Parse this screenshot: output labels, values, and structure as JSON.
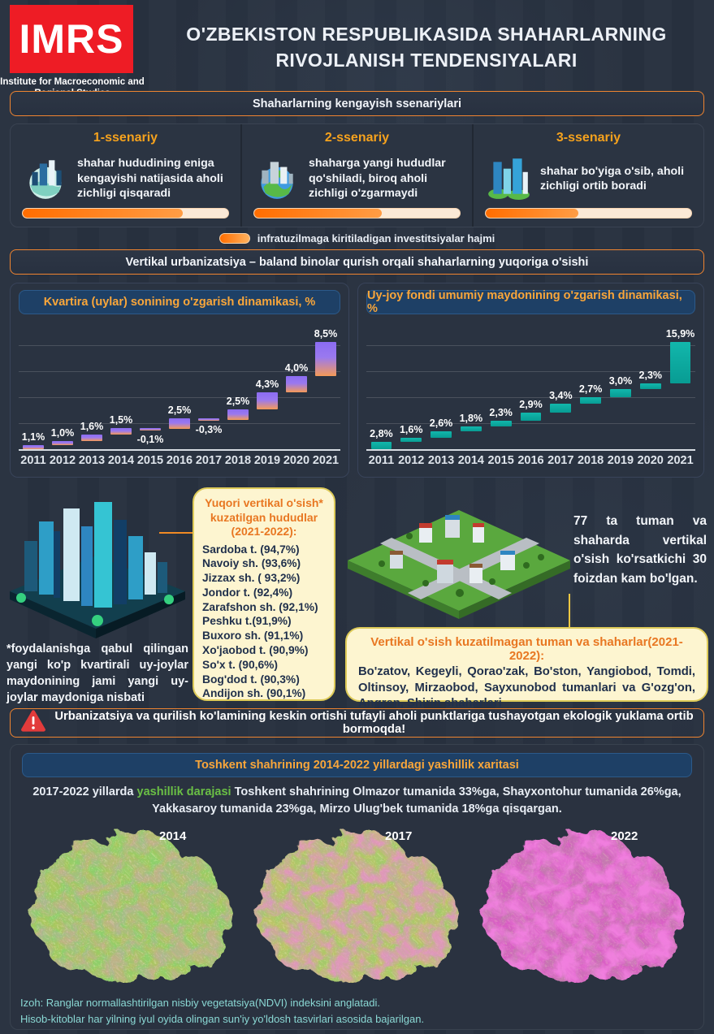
{
  "header": {
    "logo_text": "IMRS",
    "logo_subtitle": "Institute for Macroeconomic and Regional Studies",
    "title_line1": "O'ZBEKISTON RESPUBLIKASIDA SHAHARLARNING",
    "title_line2": "RIVOJLANISH TENDENSIYALARI"
  },
  "banners": {
    "scenarios": "Shaharlarning kengayish ssenariylari",
    "vertical": "Vertikal urbanizatsiya – baland binolar qurish orqali shaharlarning yuqoriga o'sishi",
    "warning": "Urbanizatsiya va qurilish ko'lamining keskin ortishi tufayli aholi punktlariga tushayotgan ekologik yuklama ortib bormoqda!"
  },
  "scenarios": [
    {
      "title": "1-ssenariy",
      "text": "shahar hududining eniga kengayishi natijasida aholi zichligi qisqaradi",
      "progress": 78
    },
    {
      "title": "2-ssenariy",
      "text": "shaharga yangi hududlar qo'shiladi, biroq aholi zichligi o'zgarmaydi",
      "progress": 62
    },
    {
      "title": "3-ssenariy",
      "text": "shahar bo'yiga o'sib, aholi zichligi ortib boradi",
      "progress": 45
    }
  ],
  "legend": {
    "label": "infratuzilmaga kiritiladigan investitsiyalar hajmi"
  },
  "chart_data": [
    {
      "type": "bar",
      "variant": "waterfall",
      "title": "Kvartira (uylar) sonining o'zgarish dinamikasi, %",
      "categories": [
        "2011",
        "2012",
        "2013",
        "2014",
        "2015",
        "2016",
        "2017",
        "2018",
        "2019",
        "2020",
        "2021"
      ],
      "values": [
        1.1,
        1.0,
        1.6,
        1.5,
        -0.1,
        2.5,
        -0.3,
        2.5,
        4.3,
        4.0,
        8.5
      ],
      "labels": [
        "1,1%",
        "1,0%",
        "1,6%",
        "1,5%",
        "-0,1%",
        "2,5%",
        "-0,3%",
        "2,5%",
        "4,3%",
        "4,0%",
        "8,5%"
      ],
      "xlabel": "",
      "ylabel": "",
      "grid": true,
      "legend": "none",
      "bar_colors": [
        "#8b6cf2",
        "#f59a57"
      ]
    },
    {
      "type": "bar",
      "variant": "waterfall",
      "title": "Uy-joy fondi umumiy maydonining o'zgarish dinamikasi, %",
      "categories": [
        "2011",
        "2012",
        "2013",
        "2014",
        "2015",
        "2016",
        "2017",
        "2018",
        "2019",
        "2020",
        "2021"
      ],
      "values": [
        2.8,
        1.6,
        2.6,
        1.8,
        2.3,
        2.9,
        3.4,
        2.7,
        3.0,
        2.3,
        15.9
      ],
      "labels": [
        "2,8%",
        "1,6%",
        "2,6%",
        "1,8%",
        "2,3%",
        "2,9%",
        "3,4%",
        "2,7%",
        "3,0%",
        "2,3%",
        "15,9%"
      ],
      "xlabel": "",
      "ylabel": "",
      "grid": true,
      "legend": "none",
      "bar_colors": [
        "#0fb3a8"
      ]
    }
  ],
  "high_growth_box": {
    "title": "Yuqori vertikal o'sish* kuzatilgan hududlar (2021-2022):",
    "items": [
      "Sardoba t. (94,7%)",
      "Navoiy sh. (93,6%)",
      "Jizzax sh. ( 93,2%)",
      "Jondor t. (92,4%)",
      "Zarafshon sh. (92,1%)",
      "Peshku t.(91,9%)",
      "Buxoro sh. (91,1%)",
      "Xo'jaobod t. (90,9%)",
      "So'x t. (90,6%)",
      "Bog'dod t. (90,3%)",
      "Andijon sh. (90,1%)"
    ]
  },
  "note_left": "*foydalanishga qabul qilingan yangi ko'p kvartirali uy-joylar maydonining jami yangi uy-joylar maydoniga nisbati",
  "stat_right": "77 ta tuman va shaharda vertikal o'sish ko'rsatkichi 30 foizdan kam bo'lgan.",
  "no_growth_box": {
    "title": "Vertikal o'sish kuzatilmagan tuman va shaharlar(2021-2022):",
    "text": "Bo'zatov, Kegeyli, Qorao'zak, Bo'ston, Yangiobod, Tomdi, Oltinsoy, Mirzaobod, Sayxunobod tumanlari va G'ozg'on, Angren, Shirin shaharlari"
  },
  "greenery": {
    "title": "Toshkent shahrining 2014-2022 yillardagi yashillik xaritasi",
    "subtitle": {
      "before": "2017-2022 yillarda ",
      "highlight": "yashillik darajasi",
      "after": " Toshkent shahrining Olmazor tumanida 33%ga, Shayxontohur tumanida 26%ga, Yakkasaroy tumanida 23%ga, Mirzo Ulug'bek tumanida 18%ga qisqargan."
    },
    "maps": [
      {
        "year": "2014",
        "dominant": "green"
      },
      {
        "year": "2017",
        "dominant": "mixed"
      },
      {
        "year": "2022",
        "dominant": "magenta"
      }
    ],
    "note_line1": "Izoh: Ranglar normallashtirilgan nisbiy vegetatsiya(NDVI) indeksini anglatadi.",
    "note_line2": "Hisob-kitoblar har yilning iyul oyida olingan sun'iy yo'ldosh tasvirlari asosida bajarilgan."
  },
  "colors": {
    "accent_orange": "#ef8430",
    "heading_orange": "#f6a21d",
    "bar_purple": "#8b6cf2",
    "bar_orange_bottom": "#f59a57",
    "bar_teal": "#0fb3a8",
    "yellow_box_bg": "#fdf5d0",
    "warning_red": "#e23b3b",
    "note_teal": "#8ad8d4",
    "band_blue": "#1e4066",
    "highlight_green": "#6abf45",
    "logo_red": "#ee1c25"
  }
}
